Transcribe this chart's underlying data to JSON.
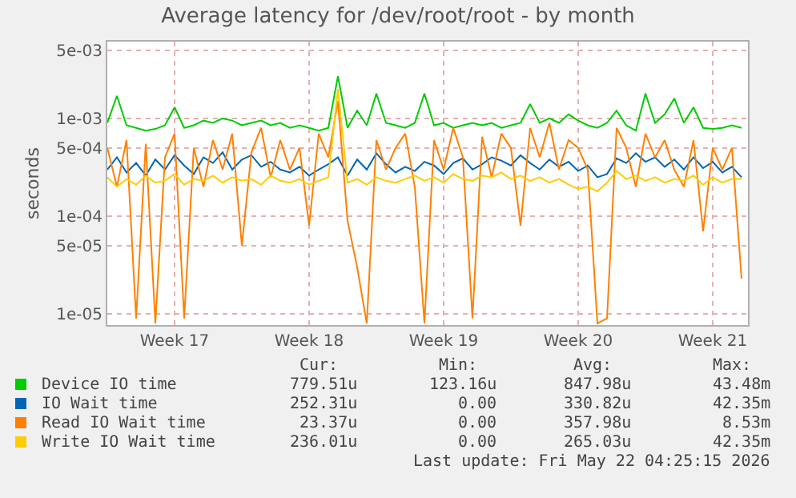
{
  "chart_data": {
    "type": "line",
    "title": "Average latency for /dev/root/root - by month",
    "ylabel": "seconds",
    "log": true,
    "grid": true,
    "legend": "bottom left",
    "marker": "none",
    "line_style": "solid",
    "x": [
      "2026-04-20T00:00",
      "2026-04-20T12:00",
      "2026-04-21T00:00",
      "2026-04-21T12:00",
      "2026-04-22T00:00",
      "2026-04-22T12:00",
      "2026-04-23T00:00",
      "2026-04-23T12:00",
      "2026-04-24T00:00",
      "2026-04-24T12:00",
      "2026-04-25T00:00",
      "2026-04-25T12:00",
      "2026-04-26T00:00",
      "2026-04-26T12:00",
      "2026-04-27T00:00",
      "2026-04-27T12:00",
      "2026-04-28T00:00",
      "2026-04-28T12:00",
      "2026-04-29T00:00",
      "2026-04-29T12:00",
      "2026-04-30T00:00",
      "2026-04-30T12:00",
      "2026-05-01T00:00",
      "2026-05-01T12:00",
      "2026-05-02T00:00",
      "2026-05-02T12:00",
      "2026-05-03T00:00",
      "2026-05-03T12:00",
      "2026-05-04T00:00",
      "2026-05-04T12:00",
      "2026-05-05T00:00",
      "2026-05-05T12:00",
      "2026-05-06T00:00",
      "2026-05-06T12:00",
      "2026-05-07T00:00",
      "2026-05-07T12:00",
      "2026-05-08T00:00",
      "2026-05-08T12:00",
      "2026-05-09T00:00",
      "2026-05-09T12:00",
      "2026-05-10T00:00",
      "2026-05-10T12:00",
      "2026-05-11T00:00",
      "2026-05-11T12:00",
      "2026-05-12T00:00",
      "2026-05-12T12:00",
      "2026-05-13T00:00",
      "2026-05-13T12:00",
      "2026-05-14T00:00",
      "2026-05-14T12:00",
      "2026-05-15T00:00",
      "2026-05-15T12:00",
      "2026-05-16T00:00",
      "2026-05-16T12:00",
      "2026-05-17T00:00",
      "2026-05-17T12:00",
      "2026-05-18T00:00",
      "2026-05-18T12:00",
      "2026-05-19T00:00",
      "2026-05-19T12:00",
      "2026-05-20T00:00",
      "2026-05-20T12:00",
      "2026-05-21T00:00",
      "2026-05-21T12:00",
      "2026-05-22T00:00",
      "2026-05-22T12:00",
      "2026-05-23T00:00"
    ],
    "xlim": [
      "2026-04-20T00:00",
      "2026-05-23T08:00"
    ],
    "xticks": [
      {
        "value": "2026-04-23T12:00",
        "label": "Week 17"
      },
      {
        "value": "2026-04-30T12:00",
        "label": "Week 18"
      },
      {
        "value": "2026-05-07T12:00",
        "label": "Week 19"
      },
      {
        "value": "2026-05-14T12:00",
        "label": "Week 20"
      },
      {
        "value": "2026-05-21T12:00",
        "label": "Week 21"
      }
    ],
    "ylim": [
      7.7e-06,
      0.0061
    ],
    "yticks": [
      {
        "value": 1e-05,
        "label": "1e-05"
      },
      {
        "value": 5e-05,
        "label": "5e-05"
      },
      {
        "value": 0.0001,
        "label": "1e-04"
      },
      {
        "value": 0.0005,
        "label": "5e-04"
      },
      {
        "value": 0.001,
        "label": "1e-03"
      },
      {
        "value": 0.005,
        "label": "5e-03"
      }
    ],
    "series": [
      {
        "name": "Device IO time",
        "color": "#00cc00",
        "values": [
          0.0009,
          0.0017,
          0.00085,
          0.0008,
          0.00075,
          0.00078,
          0.00085,
          0.0013,
          0.0008,
          0.00085,
          0.00095,
          0.0009,
          0.001,
          0.00095,
          0.00085,
          0.0009,
          0.00095,
          0.00085,
          0.0009,
          0.0008,
          0.00085,
          0.0008,
          0.00075,
          0.0008,
          0.0027,
          0.0008,
          0.0012,
          0.00085,
          0.0018,
          0.0009,
          0.00085,
          0.0008,
          0.0009,
          0.0018,
          0.00085,
          0.0009,
          0.0008,
          0.00085,
          0.0009,
          0.00085,
          0.0009,
          0.0008,
          0.00085,
          0.0009,
          0.0014,
          0.0009,
          0.001,
          0.0009,
          0.0011,
          0.00095,
          0.00085,
          0.0008,
          0.0009,
          0.0012,
          0.00085,
          0.00075,
          0.0018,
          0.0009,
          0.0011,
          0.0016,
          0.0009,
          0.0013,
          0.0008,
          0.00078,
          0.0008,
          0.00085,
          0.0008
        ]
      },
      {
        "name": "IO Wait time",
        "color": "#0066b3",
        "values": [
          0.0003,
          0.0004,
          0.00028,
          0.00035,
          0.00026,
          0.00038,
          0.0003,
          0.00042,
          0.00033,
          0.00027,
          0.0004,
          0.00035,
          0.00045,
          0.0003,
          0.00038,
          0.00042,
          0.00032,
          0.00036,
          0.0003,
          0.00028,
          0.00032,
          0.00026,
          0.0003,
          0.00034,
          0.0004,
          0.00026,
          0.00038,
          0.0003,
          0.00044,
          0.00034,
          0.00028,
          0.00032,
          0.00029,
          0.00036,
          0.00033,
          0.00027,
          0.00035,
          0.00039,
          0.0003,
          0.00034,
          0.0004,
          0.00037,
          0.00033,
          0.00042,
          0.00035,
          0.0003,
          0.00038,
          0.00032,
          0.00036,
          0.00029,
          0.00033,
          0.00025,
          0.00027,
          0.00039,
          0.00035,
          0.00044,
          0.00036,
          0.0004,
          0.00032,
          0.00038,
          0.0003,
          0.0004,
          0.00031,
          0.00036,
          0.00028,
          0.00032,
          0.00025
        ]
      },
      {
        "name": "Read IO Wait time",
        "color": "#ff8000",
        "values": [
          0.0005,
          0.0002,
          0.0006,
          9e-06,
          0.00055,
          8e-06,
          0.0004,
          0.0007,
          9e-06,
          0.0005,
          0.0002,
          0.0006,
          0.0003,
          0.0007,
          5e-05,
          0.00045,
          0.0008,
          0.00025,
          0.0006,
          0.0003,
          0.0005,
          8e-05,
          0.0007,
          0.0004,
          0.0015,
          9e-05,
          3e-05,
          8e-06,
          0.0006,
          0.0003,
          0.0005,
          0.0007,
          0.0002,
          8e-06,
          0.0006,
          0.0003,
          0.0008,
          0.0004,
          9e-06,
          0.00065,
          0.00025,
          0.0007,
          0.0005,
          8e-05,
          0.0008,
          0.0004,
          0.0009,
          0.0003,
          0.0006,
          0.0005,
          0.0003,
          8e-06,
          9e-06,
          0.0008,
          0.0005,
          0.0002,
          0.0007,
          0.0004,
          0.0006,
          0.0003,
          0.0002,
          0.0006,
          7e-05,
          0.0005,
          0.0003,
          0.0005,
          2.3e-05
        ]
      },
      {
        "name": "Write IO Wait time",
        "color": "#ffcc00",
        "values": [
          0.00025,
          0.0002,
          0.00024,
          0.00021,
          0.00026,
          0.00022,
          0.00023,
          0.00027,
          0.00021,
          0.00024,
          0.00023,
          0.00026,
          0.00022,
          0.00025,
          0.00023,
          0.00024,
          0.00021,
          0.00026,
          0.00023,
          0.00022,
          0.00024,
          0.00021,
          0.00023,
          0.00025,
          0.002,
          0.00022,
          0.00024,
          0.00021,
          0.00025,
          0.00023,
          0.00022,
          0.00024,
          0.00026,
          0.00023,
          0.00025,
          0.00022,
          0.00027,
          0.00024,
          0.00023,
          0.00026,
          0.00025,
          0.00028,
          0.00024,
          0.00026,
          0.00023,
          0.00025,
          0.00022,
          0.00024,
          0.00021,
          0.00019,
          0.0002,
          0.00018,
          0.00022,
          0.00029,
          0.00024,
          0.00026,
          0.00023,
          0.00025,
          0.00022,
          0.00024,
          0.00023,
          0.00026,
          0.00021,
          0.00025,
          0.00022,
          0.00024,
          0.00024
        ]
      }
    ],
    "annotations": [
      "Cur:",
      "Min:",
      "Avg:",
      "Max:",
      "779.51u",
      "123.16u",
      "847.98u",
      "43.48m",
      "252.31u",
      "0.00",
      "330.82u",
      "42.35m",
      "23.37u",
      "0.00",
      "357.98u",
      "8.53m",
      "236.01u",
      "0.00",
      "265.03u",
      "42.35m",
      "Last update: Fri May 22 04:25:15 2026"
    ]
  }
}
